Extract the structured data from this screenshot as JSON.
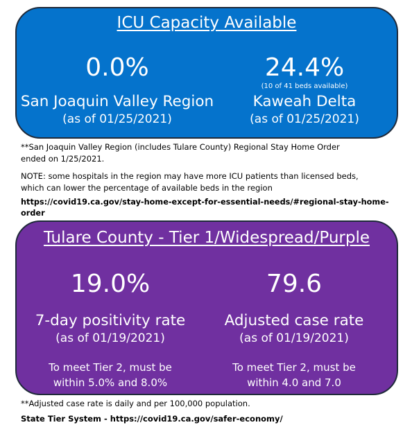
{
  "icu": {
    "title": "ICU Capacity Available",
    "left": {
      "value": "0.0%",
      "name": "San Joaquin Valley Region",
      "date": "(as of 01/25/2021)"
    },
    "right": {
      "value": "24.4%",
      "beds": "(10 of 41 beds available)",
      "name": "Kaweah Delta",
      "date": "(as of 01/25/2021)"
    },
    "color": "#0573cc"
  },
  "notes": {
    "stay_home_line1": "**San Joaquin Valley Region (includes Tulare County) Regional Stay Home Order",
    "stay_home_line2": "ended on 1/25/2021.",
    "note_line1": "NOTE:  some hospitals in the region may have more ICU patients than licensed beds,",
    "note_line2": "which can lower the percentage of available beds in the region",
    "link": "https://covid19.ca.gov/stay-home-except-for-essential-needs/#regional-stay-home-order"
  },
  "tier": {
    "title": "Tulare County - Tier 1/Widespread/Purple",
    "left": {
      "value": "19.0%",
      "name": "7-day positivity rate",
      "date": "(as of 01/19/2021)",
      "req_line1": "To meet Tier 2, must be",
      "req_line2": "within 5.0% and 8.0%"
    },
    "right": {
      "value": "79.6",
      "name": "Adjusted case rate",
      "date": "(as of 01/19/2021)",
      "req_line1": "To meet Tier 2, must be",
      "req_line2": "within 4.0 and 7.0"
    },
    "color": "#7030a0"
  },
  "footer": {
    "case_rate_note": "**Adjusted case rate is daily and per 100,000  population.",
    "link": "State Tier System - https://covid19.ca.gov/safer-economy/"
  }
}
